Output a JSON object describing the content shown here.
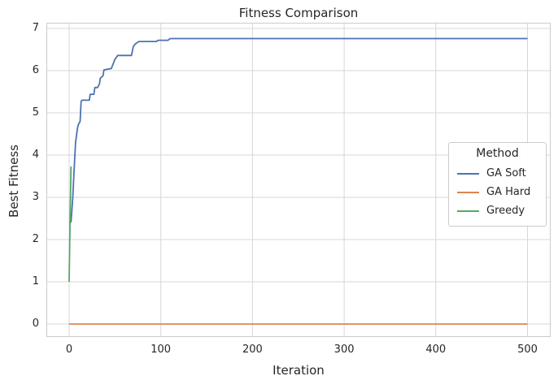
{
  "chart_data": {
    "type": "line",
    "title": "Fitness Comparison",
    "xlabel": "Iteration",
    "ylabel": "Best Fitness",
    "x_ticks": [
      0,
      100,
      200,
      300,
      400,
      500
    ],
    "y_ticks": [
      0,
      1,
      2,
      3,
      4,
      5,
      6,
      7
    ],
    "xlim": [
      -25,
      526
    ],
    "ylim": [
      -0.3,
      7.15
    ],
    "grid": true,
    "grid_color": "#d7d7d7",
    "spine_color": "#cbcbcb",
    "text_color": "#262626",
    "legend": {
      "title": "Method",
      "position": "center right"
    },
    "series": [
      {
        "name": "GA Soft",
        "color": "#4C72B0",
        "points": [
          [
            0,
            2.42
          ],
          [
            2,
            2.42
          ],
          [
            3,
            2.7
          ],
          [
            4,
            3.0
          ],
          [
            5,
            3.45
          ],
          [
            6,
            3.9
          ],
          [
            7,
            4.3
          ],
          [
            9,
            4.62
          ],
          [
            10,
            4.72
          ],
          [
            12,
            4.8
          ],
          [
            13,
            5.27
          ],
          [
            14,
            5.3
          ],
          [
            22,
            5.3
          ],
          [
            23,
            5.44
          ],
          [
            27,
            5.44
          ],
          [
            28,
            5.6
          ],
          [
            31,
            5.6
          ],
          [
            33,
            5.68
          ],
          [
            34,
            5.82
          ],
          [
            37,
            5.88
          ],
          [
            38,
            6.02
          ],
          [
            46,
            6.05
          ],
          [
            48,
            6.16
          ],
          [
            50,
            6.27
          ],
          [
            53,
            6.36
          ],
          [
            68,
            6.36
          ],
          [
            70,
            6.57
          ],
          [
            72,
            6.63
          ],
          [
            76,
            6.69
          ],
          [
            95,
            6.69
          ],
          [
            97,
            6.72
          ],
          [
            108,
            6.72
          ],
          [
            110,
            6.76
          ],
          [
            500,
            6.76
          ]
        ]
      },
      {
        "name": "GA Hard",
        "color": "#DD8452",
        "points": [
          [
            0,
            0
          ],
          [
            500,
            0
          ]
        ]
      },
      {
        "name": "Greedy",
        "color": "#55A868",
        "points": [
          [
            0,
            1.0
          ],
          [
            1,
            2.4
          ],
          [
            2,
            3.73
          ]
        ]
      }
    ]
  }
}
